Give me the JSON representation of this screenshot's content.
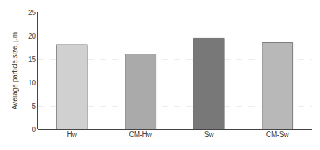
{
  "chart_data": {
    "type": "bar",
    "categories": [
      "Hw",
      "CM-Hw",
      "Sw",
      "CM-Sw"
    ],
    "values": [
      18.1,
      16.1,
      19.5,
      18.6
    ],
    "colors": [
      "#d0d0d0",
      "#aaaaaa",
      "#787878",
      "#b8b8b8"
    ],
    "ylabel": "Average particle size, μm",
    "ylim": [
      0,
      25
    ],
    "yticks": [
      0,
      5,
      10,
      15,
      20,
      25
    ],
    "grid": true
  }
}
